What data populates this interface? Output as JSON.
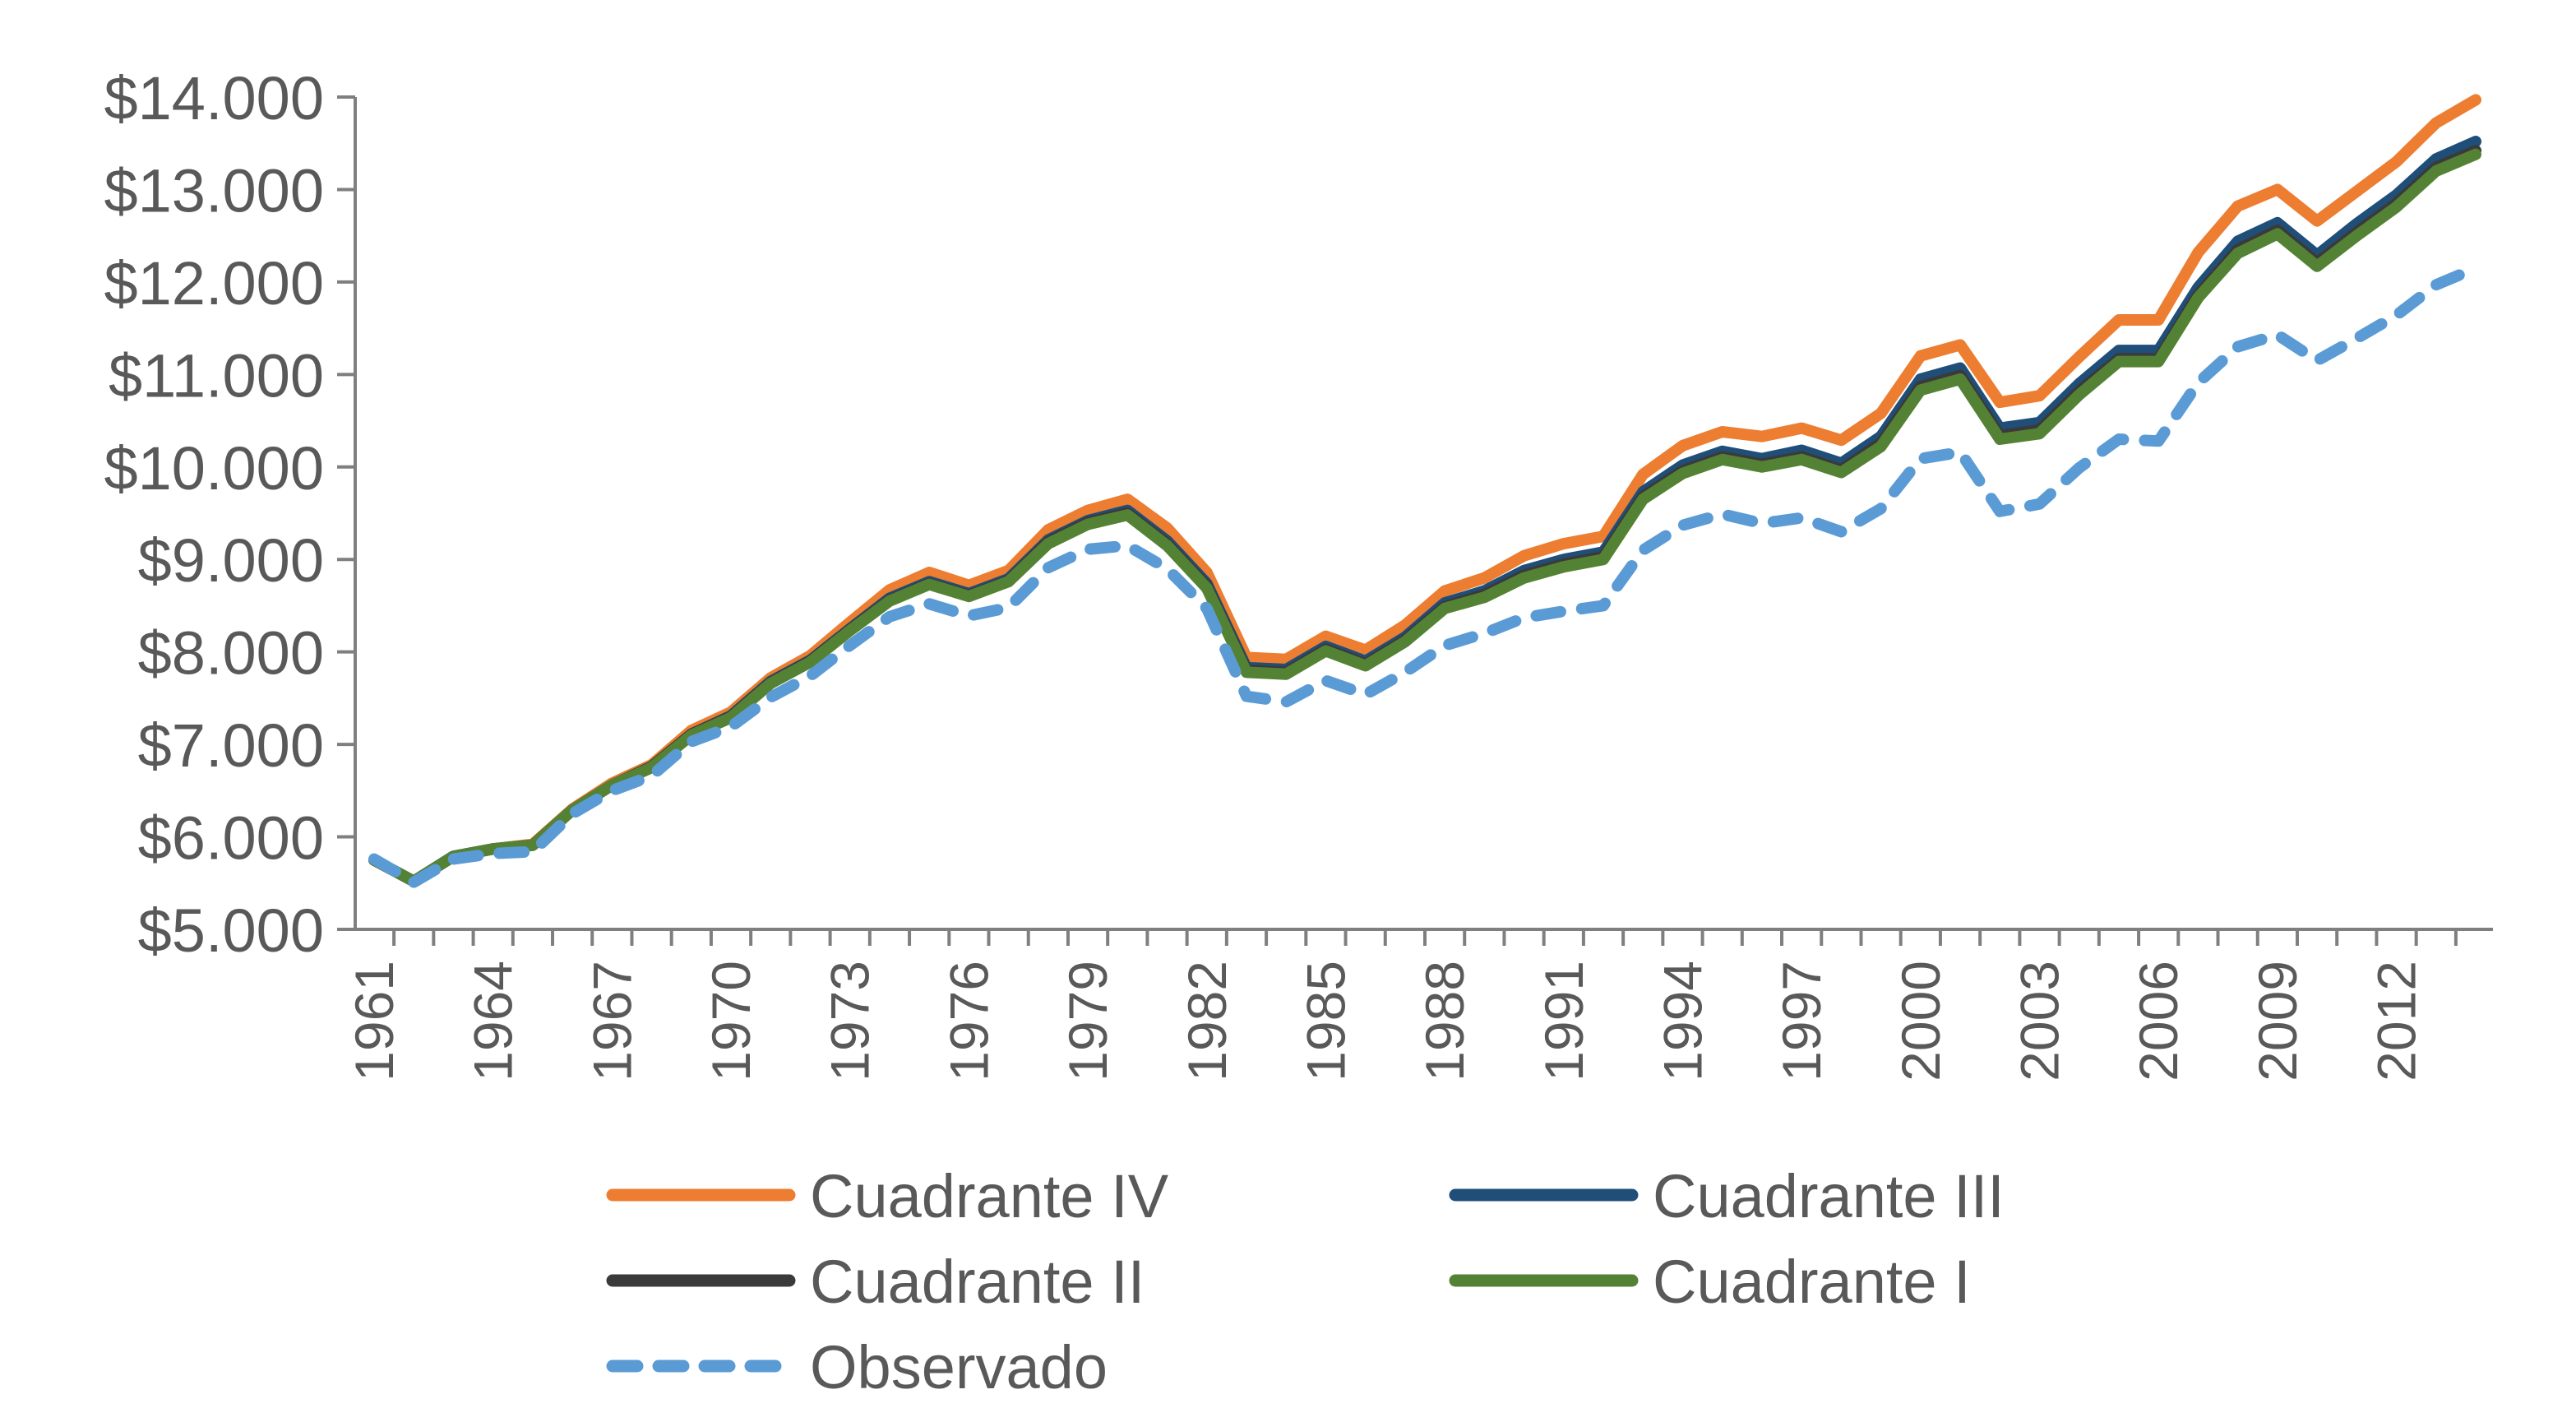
{
  "chart_data": {
    "type": "line",
    "title": "",
    "xlabel": "",
    "ylabel": "",
    "x": [
      1961,
      1962,
      1963,
      1964,
      1965,
      1966,
      1967,
      1968,
      1969,
      1970,
      1971,
      1972,
      1973,
      1974,
      1975,
      1976,
      1977,
      1978,
      1979,
      1980,
      1981,
      1982,
      1983,
      1984,
      1985,
      1986,
      1987,
      1988,
      1989,
      1990,
      1991,
      1992,
      1993,
      1994,
      1995,
      1996,
      1997,
      1998,
      1999,
      2000,
      2001,
      2002,
      2003,
      2004,
      2005,
      2006,
      2007,
      2008,
      2009,
      2010,
      2011,
      2012,
      2013,
      2014
    ],
    "x_tick_labels": [
      "1961",
      "1964",
      "1967",
      "1970",
      "1973",
      "1976",
      "1979",
      "1982",
      "1985",
      "1988",
      "1991",
      "1994",
      "1997",
      "2000",
      "2003",
      "2006",
      "2009",
      "2012"
    ],
    "ylim": [
      5000,
      14000
    ],
    "y_tick_labels": [
      "$5.000",
      "$6.000",
      "$7.000",
      "$8.000",
      "$9.000",
      "$10.000",
      "$11.000",
      "$12.000",
      "$13.000",
      "$14.000"
    ],
    "grid": false,
    "legend_position": "bottom",
    "series": [
      {
        "name": "Cuadrante IV",
        "color": "#ED7D31",
        "style": "solid",
        "values": [
          5750,
          5520,
          5790,
          5870,
          5920,
          6300,
          6580,
          6780,
          7150,
          7350,
          7720,
          7960,
          8320,
          8670,
          8860,
          8720,
          8880,
          9320,
          9530,
          9650,
          9340,
          8860,
          7940,
          7920,
          8170,
          8020,
          8290,
          8660,
          8800,
          9040,
          9170,
          9250,
          9920,
          10230,
          10380,
          10330,
          10420,
          10290,
          10580,
          11200,
          11320,
          10700,
          10770,
          11190,
          11590,
          11590,
          12320,
          12820,
          13000,
          12660,
          12980,
          13300,
          13720,
          13970
        ]
      },
      {
        "name": "Cuadrante III",
        "color": "#1F4E79",
        "style": "solid",
        "values": [
          5750,
          5520,
          5790,
          5870,
          5910,
          6290,
          6560,
          6760,
          7110,
          7310,
          7680,
          7910,
          8250,
          8580,
          8760,
          8630,
          8790,
          9210,
          9420,
          9530,
          9200,
          8740,
          7830,
          7810,
          8060,
          7900,
          8160,
          8530,
          8660,
          8880,
          9000,
          9080,
          9730,
          10020,
          10170,
          10090,
          10180,
          10040,
          10330,
          10950,
          11070,
          10420,
          10480,
          10900,
          11260,
          11260,
          11940,
          12440,
          12640,
          12290,
          12630,
          12940,
          13330,
          13520
        ]
      },
      {
        "name": "Cuadrante II",
        "color": "#3A3A3A",
        "style": "solid",
        "values": [
          5750,
          5520,
          5790,
          5870,
          5910,
          6290,
          6560,
          6760,
          7110,
          7300,
          7670,
          7900,
          8240,
          8560,
          8740,
          8610,
          8770,
          9190,
          9400,
          9500,
          9170,
          8710,
          7800,
          7780,
          8030,
          7870,
          8130,
          8490,
          8620,
          8830,
          8950,
          9030,
          9680,
          9960,
          10110,
          10030,
          10110,
          9970,
          10260,
          10870,
          10990,
          10340,
          10400,
          10820,
          11170,
          11170,
          11860,
          12350,
          12560,
          12210,
          12540,
          12850,
          13240,
          13420
        ]
      },
      {
        "name": "Cuadrante I",
        "color": "#548235",
        "style": "solid",
        "values": [
          5750,
          5520,
          5790,
          5870,
          5910,
          6290,
          6560,
          6750,
          7100,
          7290,
          7660,
          7890,
          8230,
          8550,
          8730,
          8600,
          8760,
          9170,
          9380,
          9480,
          9150,
          8690,
          7780,
          7760,
          8010,
          7850,
          8110,
          8470,
          8590,
          8800,
          8920,
          9000,
          9650,
          9930,
          10080,
          10000,
          10080,
          9940,
          10220,
          10830,
          10950,
          10300,
          10360,
          10780,
          11140,
          11140,
          11830,
          12310,
          12520,
          12170,
          12500,
          12810,
          13200,
          13380
        ]
      },
      {
        "name": "Observado",
        "color": "#5B9BD5",
        "style": "dashed",
        "values": [
          5760,
          5510,
          5760,
          5820,
          5840,
          6250,
          6500,
          6660,
          7030,
          7190,
          7510,
          7740,
          8070,
          8380,
          8520,
          8390,
          8480,
          8910,
          9110,
          9150,
          8900,
          8470,
          7520,
          7460,
          7690,
          7540,
          7780,
          8070,
          8200,
          8370,
          8440,
          8500,
          9100,
          9370,
          9490,
          9390,
          9450,
          9300,
          9550,
          10090,
          10160,
          9520,
          9600,
          9990,
          10300,
          10280,
          10910,
          11300,
          11430,
          11150,
          11390,
          11640,
          11970,
          12150
        ]
      }
    ]
  }
}
